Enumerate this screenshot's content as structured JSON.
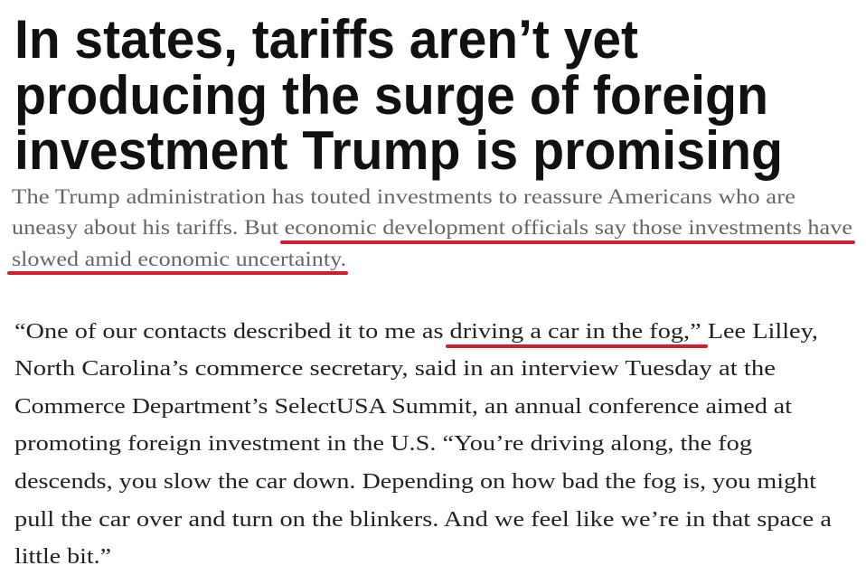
{
  "headline": {
    "lines": [
      "In states, tariffs aren’t yet",
      "producing the surge of foreign",
      "investment Trump is promising"
    ]
  },
  "subheadline": {
    "lines": [
      "The Trump administration has touted investments to reassure Americans who are",
      "uneasy about his tariffs. But economic development officials say those investments have",
      "slowed amid economic uncertainty."
    ]
  },
  "body": {
    "lines": [
      "“One of our contacts described it to me as driving a car in the fog,” Lee Lilley,",
      "North Carolina’s commerce secretary, said in an interview Tuesday at the",
      "Commerce Department’s SelectUSA Summit, an annual conference aimed at",
      "promoting foreign investment in the U.S. “You’re driving along, the fog",
      "descends, you slow the car down. Depending on how bad the fog is, you might",
      "pull the car over and turn on the blinkers. And we feel like we’re in that space a",
      "little bit.”"
    ]
  },
  "annotations": {
    "underline_color": "#d21f2f"
  }
}
